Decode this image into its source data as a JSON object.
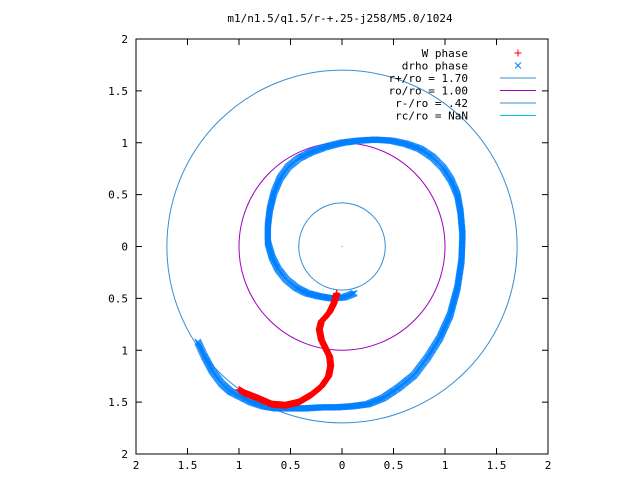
{
  "chart_data": {
    "type": "scatter",
    "title": "m1/n1.5/q1.5/r-+.25-j258/M5.0/1024",
    "xlabel": "",
    "ylabel": "",
    "xlim": [
      -2,
      2
    ],
    "ylim": [
      -2,
      2
    ],
    "x_ticks": [
      -2,
      -1.5,
      -1,
      -0.5,
      0,
      0.5,
      1,
      1.5,
      2
    ],
    "y_ticks": [
      -2,
      -1.5,
      -1,
      -0.5,
      0,
      0.5,
      1,
      1.5,
      2
    ],
    "x_tick_labels": [
      "2",
      "1.5",
      "1",
      "0.5",
      "0",
      "0.5",
      "1",
      "1.5",
      "2"
    ],
    "y_tick_labels": [
      "2",
      "1.5",
      "1",
      "0.5",
      "0",
      "0.5",
      "1",
      "1.5",
      "2"
    ],
    "grid": false,
    "legend_position": "top-right",
    "legend": [
      {
        "label": "W phase",
        "marker": "plus",
        "color": "#ff0000"
      },
      {
        "label": "drho phase",
        "marker": "cross",
        "color": "#0080ff"
      },
      {
        "label": "r+/ro = 1.70",
        "marker": "line",
        "color": "#3a8fd0"
      },
      {
        "label": "ro/ro = 1.00",
        "marker": "line",
        "color": "#a000c0"
      },
      {
        "label": "r-/ro = .42",
        "marker": "line",
        "color": "#3a8fd0"
      },
      {
        "label": "rc/ro = NaN",
        "marker": "line",
        "color": "#00c8e0"
      }
    ],
    "series": [
      {
        "name": "W phase",
        "color": "#ff0000",
        "x": [
          -0.05,
          -0.08,
          -0.12,
          -0.16,
          -0.2,
          -0.22,
          -0.2,
          -0.16,
          -0.12,
          -0.11,
          -0.13,
          -0.2,
          -0.3,
          -0.42,
          -0.55,
          -0.68,
          -0.82,
          -0.95,
          -1.0
        ],
        "y": [
          -0.45,
          -0.55,
          -0.63,
          -0.68,
          -0.72,
          -0.8,
          -0.9,
          -0.98,
          -1.06,
          -1.15,
          -1.25,
          -1.35,
          -1.43,
          -1.5,
          -1.53,
          -1.52,
          -1.46,
          -1.41,
          -1.38
        ]
      },
      {
        "name": "drho phase",
        "color": "#0080ff",
        "x": [
          -1.4,
          -1.34,
          -1.26,
          -1.17,
          -1.08,
          -0.98,
          -0.88,
          -0.76,
          -0.64,
          -0.5,
          -0.35,
          -0.2,
          -0.05,
          0.1,
          0.25,
          0.4,
          0.55,
          0.7,
          0.83,
          0.95,
          1.05,
          1.12,
          1.16,
          1.17,
          1.15,
          1.12,
          1.06,
          0.98,
          0.88,
          0.76,
          0.62,
          0.48,
          0.32,
          0.16,
          0.0,
          -0.16,
          -0.3,
          -0.42,
          -0.52,
          -0.6,
          -0.66,
          -0.7,
          -0.72,
          -0.72,
          -0.68,
          -0.62,
          -0.54,
          -0.44,
          -0.34,
          -0.22,
          -0.1,
          0.02,
          0.12
        ],
        "y": [
          -0.92,
          -1.05,
          -1.2,
          -1.32,
          -1.4,
          -1.45,
          -1.5,
          -1.54,
          -1.56,
          -1.56,
          -1.56,
          -1.55,
          -1.55,
          -1.54,
          -1.52,
          -1.46,
          -1.36,
          -1.24,
          -1.07,
          -0.88,
          -0.66,
          -0.4,
          -0.14,
          0.12,
          0.34,
          0.5,
          0.64,
          0.76,
          0.86,
          0.94,
          0.99,
          1.02,
          1.03,
          1.02,
          1.0,
          0.96,
          0.91,
          0.85,
          0.77,
          0.66,
          0.52,
          0.36,
          0.2,
          0.04,
          -0.1,
          -0.22,
          -0.32,
          -0.4,
          -0.45,
          -0.48,
          -0.5,
          -0.49,
          -0.45
        ]
      }
    ],
    "circles": [
      {
        "name": "r+/ro = 1.70",
        "radius": 1.7,
        "color": "#3a8fd0"
      },
      {
        "name": "ro/ro = 1.00",
        "radius": 1.0,
        "color": "#a000c0"
      },
      {
        "name": "r-/ro = .42",
        "radius": 0.42,
        "color": "#3a8fd0"
      }
    ]
  }
}
